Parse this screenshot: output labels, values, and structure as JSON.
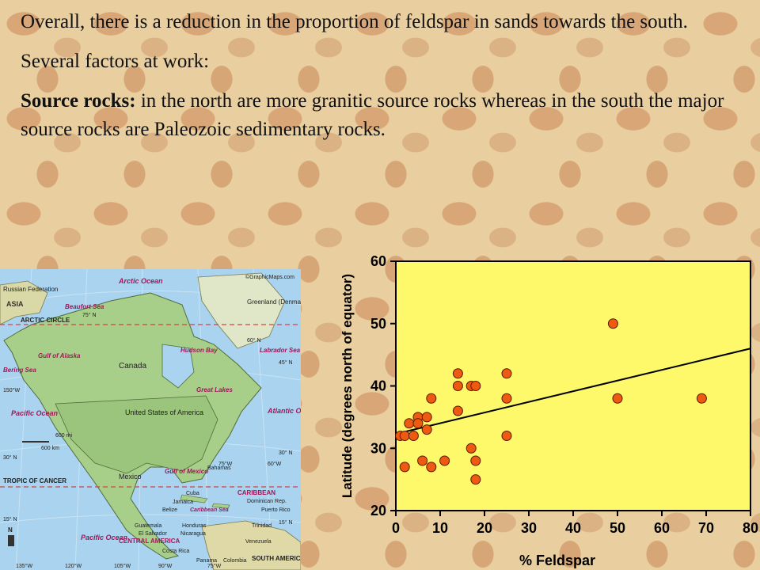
{
  "text": {
    "line1": "Overall, there is a reduction in the proportion of feldspar in sands towards the south.",
    "line2": "Several factors at work:",
    "source_bold": "Source rocks:",
    "source_rest": " in the north are more granitic source rocks whereas in the south the major source rocks are Paleozoic sedimentary rocks."
  },
  "map": {
    "credit": "©GraphicMaps.com",
    "labels": {
      "arctic_ocean": "Arctic Ocean",
      "russian_federation": "Russian Federation",
      "asia": "ASIA",
      "beaufort_sea": "Beaufort Sea",
      "greenland": "Greenland (Denmark)",
      "arctic_circle": "ARCTIC CIRCLE",
      "gulf_of_alaska": "Gulf of Alaska",
      "bering_sea": "Bering Sea",
      "canada": "Canada",
      "hudson_bay": "Hudson Bay",
      "labrador_sea": "Labrador Sea",
      "great_lakes": "Great Lakes",
      "pacific_ocean_1": "Pacific Ocean",
      "united_states": "United States of America",
      "atlantic_ocean": "Atlantic Ocean",
      "scale_mi": "600 mi",
      "scale_km": "600 km",
      "tropic": "TROPIC OF CANCER",
      "bahamas": "Bahamas",
      "mexico": "Mexico",
      "gulf_of_mexico": "Gulf of Mexico",
      "caribbean": "CARIBBEAN",
      "cuba": "Cuba",
      "jamaica": "Jamaica",
      "belize": "Belize",
      "caribbean_sea": "Caribbean Sea",
      "dominican": "Dominican Rep.",
      "puerto_rico": "Puerto Rico",
      "guatemala": "Guatemala",
      "el_salvador": "El Salvador",
      "honduras": "Honduras",
      "nicaragua": "Nicaragua",
      "trinidad": "Trinidad",
      "pacific_ocean_2": "Pacific Ocean",
      "central_america": "CENTRAL AMERICA",
      "costa_rica": "Costa Rica",
      "venezuela": "Venezuela",
      "panama": "Panama",
      "colombia": "Colombia",
      "south_america": "SOUTH AMERICA",
      "n75_top": "75° N",
      "n60_right": "60° N",
      "n45_right": "45° N",
      "w150": "150°W",
      "w75_right": "75°W",
      "w60_right": "60°W",
      "n30": "30° N",
      "n30_right": "30° N",
      "n15": "15° N",
      "n15_right": "15° N",
      "w135": "135°W",
      "w120": "120°W",
      "w105": "105°W",
      "w90": "90°W",
      "w75": "75°W",
      "north": "N"
    }
  },
  "chart_data": {
    "type": "scatter",
    "xlabel": "% Feldspar",
    "ylabel": "Latitude (degrees north of equator)",
    "xlim": [
      0,
      80
    ],
    "ylim": [
      20,
      60
    ],
    "xticks": [
      0,
      10,
      20,
      30,
      40,
      50,
      60,
      70,
      80
    ],
    "yticks": [
      20,
      30,
      40,
      50,
      60
    ],
    "grid": false,
    "background_color": "#fdf96a",
    "point_color": "#ef5a12",
    "points": [
      [
        1,
        32
      ],
      [
        2,
        32
      ],
      [
        2,
        27
      ],
      [
        3,
        34
      ],
      [
        4,
        32
      ],
      [
        5,
        35
      ],
      [
        5,
        34
      ],
      [
        6,
        28
      ],
      [
        7,
        35
      ],
      [
        7,
        33
      ],
      [
        8,
        38
      ],
      [
        8,
        27
      ],
      [
        11,
        28
      ],
      [
        14,
        42
      ],
      [
        14,
        40
      ],
      [
        14,
        36
      ],
      [
        17,
        40
      ],
      [
        17,
        30
      ],
      [
        18,
        40
      ],
      [
        18,
        28
      ],
      [
        18,
        25
      ],
      [
        25,
        42
      ],
      [
        25,
        38
      ],
      [
        25,
        32
      ],
      [
        49,
        50
      ],
      [
        50,
        38
      ],
      [
        69,
        38
      ]
    ],
    "trendline": [
      [
        0,
        32.3
      ],
      [
        80,
        46
      ]
    ]
  }
}
